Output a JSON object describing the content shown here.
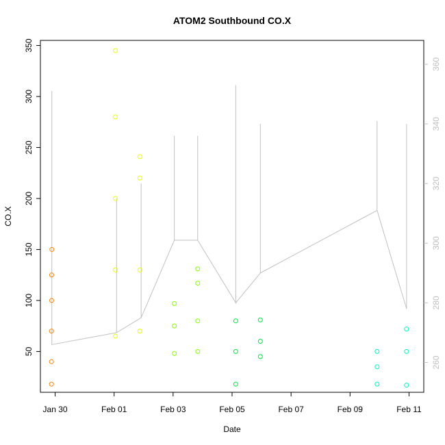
{
  "chart_data": {
    "type": "scatter",
    "title": "ATOM2 Southbound CO.X",
    "xlabel": "Date",
    "ylabel": "CO.X",
    "x_ticks": [
      "Jan 30",
      "Feb 01",
      "Feb 03",
      "Feb 05",
      "Feb 07",
      "Feb 09",
      "Feb 11"
    ],
    "y_ticks": [
      "50",
      "100",
      "150",
      "200",
      "250",
      "300",
      "350"
    ],
    "y2_ticks": [
      "260",
      "280",
      "300",
      "320",
      "340",
      "360"
    ],
    "xlim": [
      "2014-01-29",
      "2014-02-11"
    ],
    "ylim": [
      10,
      355
    ],
    "y2lim": [
      250,
      368
    ],
    "grid": false,
    "series": [
      {
        "color": "#ff8000",
        "points": [
          [
            "2014-01-29 21:00",
            18
          ],
          [
            "2014-01-29 21:00",
            40
          ],
          [
            "2014-01-29 21:00",
            70
          ],
          [
            "2014-01-29 21:10",
            100
          ],
          [
            "2014-01-29 21:10",
            125
          ],
          [
            "2014-01-29 21:20",
            150
          ]
        ]
      },
      {
        "color": "#e6ff00",
        "points": [
          [
            "2014-02-01 01:00",
            65
          ],
          [
            "2014-02-01 01:00",
            130
          ],
          [
            "2014-02-01 01:00",
            200
          ],
          [
            "2014-02-01 01:00",
            280
          ],
          [
            "2014-02-01 01:00",
            345
          ],
          [
            "2014-02-01 21:00",
            70
          ],
          [
            "2014-02-01 21:00",
            130
          ],
          [
            "2014-02-01 21:00",
            220
          ],
          [
            "2014-02-01 21:00",
            241
          ]
        ]
      },
      {
        "color": "#80ff00",
        "points": [
          [
            "2014-02-03 01:00",
            48
          ],
          [
            "2014-02-03 01:00",
            75
          ],
          [
            "2014-02-03 01:00",
            97
          ],
          [
            "2014-02-03 20:00",
            50
          ],
          [
            "2014-02-03 20:00",
            80
          ],
          [
            "2014-02-03 20:00",
            117
          ],
          [
            "2014-02-03 20:00",
            131
          ]
        ]
      },
      {
        "color": "#00e640",
        "points": [
          [
            "2014-02-05 03:00",
            18
          ],
          [
            "2014-02-05 03:00",
            50
          ],
          [
            "2014-02-05 03:00",
            80
          ],
          [
            "2014-02-05 23:00",
            45
          ],
          [
            "2014-02-05 23:00",
            60
          ],
          [
            "2014-02-05 23:00",
            81
          ]
        ]
      },
      {
        "color": "#00f0c0",
        "points": [
          [
            "2014-02-09 22:00",
            18
          ],
          [
            "2014-02-09 22:00",
            35
          ],
          [
            "2014-02-09 22:00",
            50
          ],
          [
            "2014-02-10 22:00",
            17
          ],
          [
            "2014-02-10 22:00",
            50
          ],
          [
            "2014-02-10 22:00",
            72
          ]
        ]
      }
    ],
    "line_series": {
      "axis": "right",
      "color": "#c0c0c0",
      "segments": [
        {
          "x": "2014-01-29 21:20",
          "y_range": [
            266,
            351
          ]
        },
        {
          "x": "2014-02-01 02:00",
          "y_range": [
            270,
            315
          ]
        },
        {
          "x": "2014-02-01 22:00",
          "y_range": [
            275,
            320
          ]
        },
        {
          "x": "2014-02-03 01:00",
          "y_range": [
            301,
            336
          ]
        },
        {
          "x": "2014-02-03 20:00",
          "y_range": [
            301,
            336
          ]
        },
        {
          "x": "2014-02-05 03:00",
          "y_range": [
            280,
            353
          ]
        },
        {
          "x": "2014-02-05 23:00",
          "y_range": [
            290,
            340
          ]
        },
        {
          "x": "2014-02-09 22:00",
          "y_range": [
            311,
            341
          ]
        },
        {
          "x": "2014-02-10 22:00",
          "y_range": [
            278,
            340
          ]
        }
      ]
    }
  }
}
